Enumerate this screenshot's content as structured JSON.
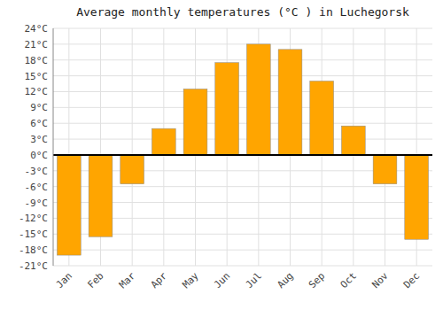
{
  "chart_data": {
    "type": "bar",
    "title": "Average monthly temperatures (°C ) in Luchegorsk",
    "categories": [
      "Jan",
      "Feb",
      "Mar",
      "Apr",
      "May",
      "Jun",
      "Jul",
      "Aug",
      "Sep",
      "Oct",
      "Nov",
      "Dec"
    ],
    "values": [
      -19,
      -15.5,
      -5.5,
      5,
      12.5,
      17.5,
      21,
      20,
      14,
      5.5,
      -5.5,
      -16
    ],
    "color": "#FFA500",
    "ylim": [
      -21,
      24
    ],
    "yticks": [
      {
        "value": -21,
        "label": "-21°C"
      },
      {
        "value": -18,
        "label": "-18°C"
      },
      {
        "value": -15,
        "label": "-15°C"
      },
      {
        "value": -12,
        "label": "-12°C"
      },
      {
        "value": -9,
        "label": "-9°C"
      },
      {
        "value": -6,
        "label": "-6°C"
      },
      {
        "value": -3,
        "label": "-3°C"
      },
      {
        "value": 0,
        "label": "0°C"
      },
      {
        "value": 3,
        "label": "3°C"
      },
      {
        "value": 6,
        "label": "6°C"
      },
      {
        "value": 9,
        "label": "9°C"
      },
      {
        "value": 12,
        "label": "12°C"
      },
      {
        "value": 15,
        "label": "15°C"
      },
      {
        "value": 18,
        "label": "18°C"
      },
      {
        "value": 21,
        "label": "21°C"
      },
      {
        "value": 24,
        "label": "24°C"
      }
    ],
    "grid": true
  }
}
